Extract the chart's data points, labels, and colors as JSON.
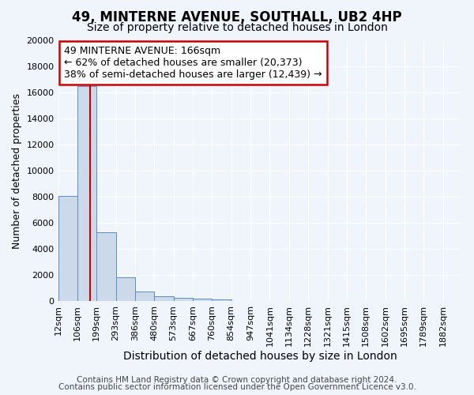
{
  "title1": "49, MINTERNE AVENUE, SOUTHALL, UB2 4HP",
  "title2": "Size of property relative to detached houses in London",
  "xlabel": "Distribution of detached houses by size in London",
  "ylabel": "Number of detached properties",
  "footer1": "Contains HM Land Registry data © Crown copyright and database right 2024.",
  "footer2": "Contains public sector information licensed under the Open Government Licence v3.0.",
  "bin_labels": [
    "12sqm",
    "106sqm",
    "199sqm",
    "293sqm",
    "386sqm",
    "480sqm",
    "573sqm",
    "667sqm",
    "760sqm",
    "854sqm",
    "947sqm",
    "1041sqm",
    "1134sqm",
    "1228sqm",
    "1321sqm",
    "1415sqm",
    "1508sqm",
    "1602sqm",
    "1695sqm",
    "1789sqm",
    "1882sqm"
  ],
  "bar_heights": [
    8050,
    16500,
    5300,
    1820,
    750,
    370,
    210,
    170,
    130,
    0,
    0,
    0,
    0,
    0,
    0,
    0,
    0,
    0,
    0,
    0,
    0
  ],
  "bar_color": "#ccd9ea",
  "bar_edge_color": "#5b8dc8",
  "bar_edge_width": 0.7,
  "property_size_sqm": 166,
  "annotation_line1": "49 MINTERNE AVENUE: 166sqm",
  "annotation_line2": "← 62% of detached houses are smaller (20,373)",
  "annotation_line3": "38% of semi-detached houses are larger (12,439) →",
  "annotation_box_color": "#ffffff",
  "annotation_box_edge_color": "#cc0000",
  "red_line_color": "#cc0000",
  "ylim": [
    0,
    20000
  ],
  "yticks": [
    0,
    2000,
    4000,
    6000,
    8000,
    10000,
    12000,
    14000,
    16000,
    18000,
    20000
  ],
  "background_color": "#f0f4fb",
  "axes_background": "#f0f4fb",
  "grid_color": "#ffffff",
  "title1_fontsize": 12,
  "title2_fontsize": 10,
  "xlabel_fontsize": 10,
  "ylabel_fontsize": 9,
  "tick_fontsize": 8,
  "annotation_fontsize": 9,
  "footer_fontsize": 7.5
}
